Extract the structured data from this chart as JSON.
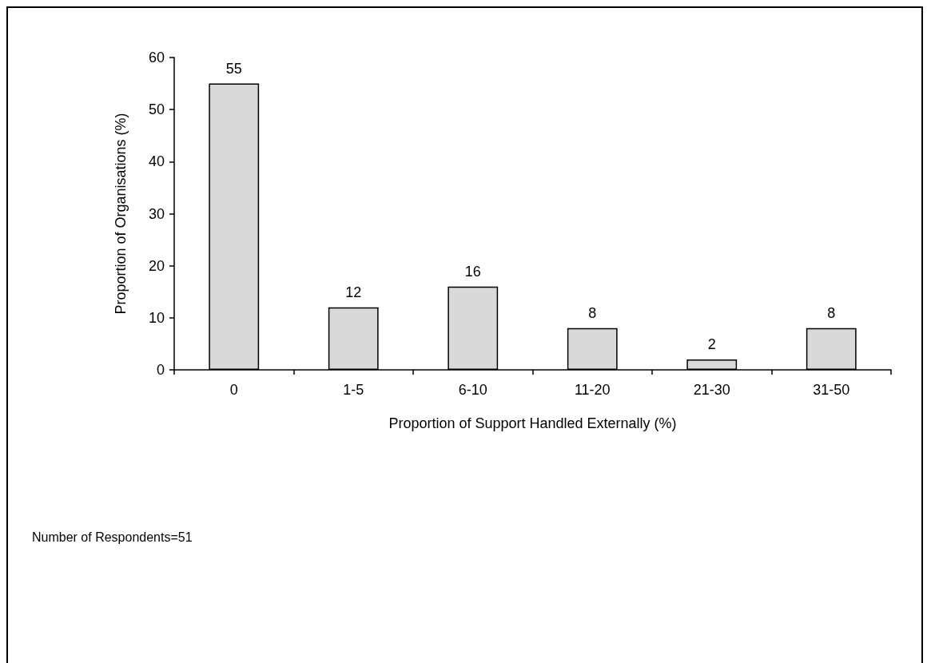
{
  "chart_data": {
    "type": "bar",
    "xlabel": "Proportion of Support Handled Externally (%)",
    "ylabel": "Proportion of Organisations (%)",
    "categories": [
      "0",
      "1-5",
      "6-10",
      "11-20",
      "21-30",
      "31-50"
    ],
    "values": [
      55,
      12,
      16,
      8,
      2,
      8
    ],
    "color": "#d9d9d9",
    "ylim": [
      0,
      60
    ],
    "yticks": [
      0,
      10,
      20,
      30,
      40,
      50,
      60
    ],
    "grid": false,
    "data_labels": true,
    "annotations": [
      "Number of Respondents=51"
    ]
  }
}
